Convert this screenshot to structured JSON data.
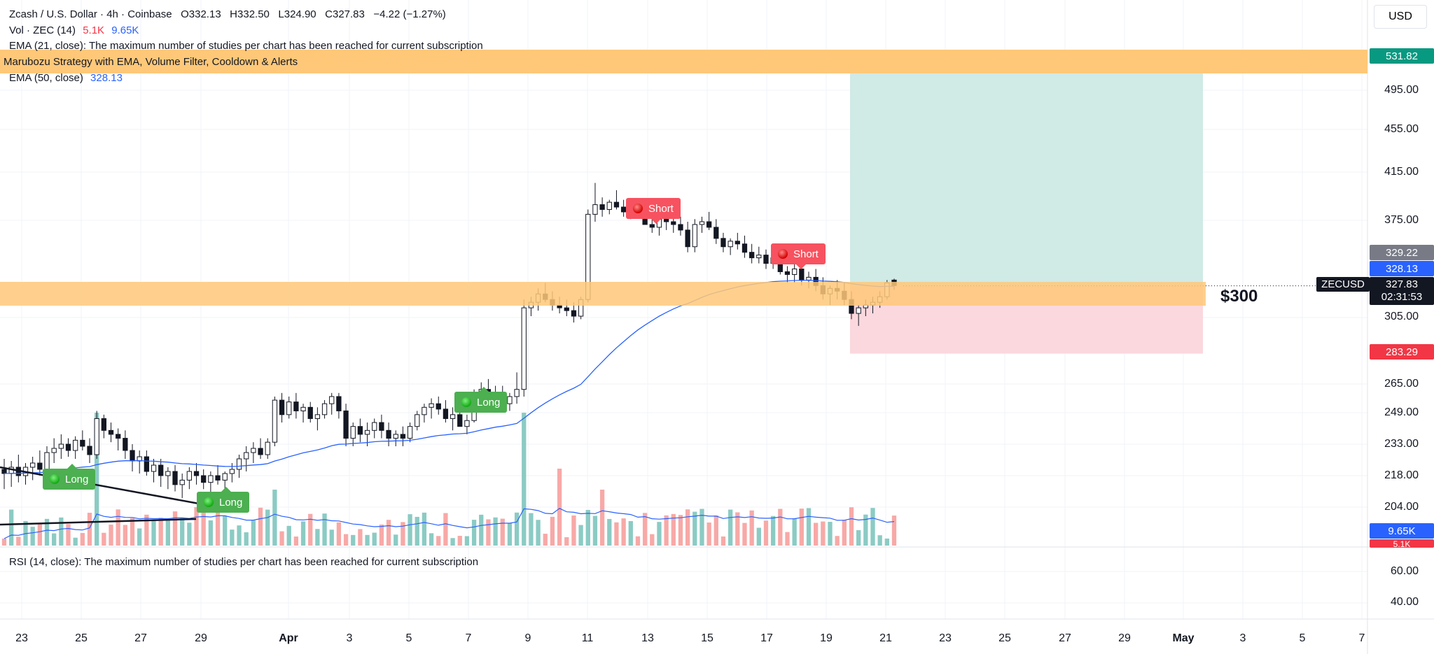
{
  "header": {
    "title": "Zcash / U.S. Dollar · 4h · Coinbase",
    "ohlc": {
      "open": "O332.13",
      "high": "H332.50",
      "low": "L324.90",
      "close": "C327.83",
      "change": "−4.22 (−1.27%)"
    }
  },
  "legend": {
    "vol_label": "Vol · ZEC (14)",
    "vol_value_red": "5.1K",
    "vol_value_blue": "9.65K",
    "ema21_label": "EMA (21, close):",
    "ema21_message": "The maximum number of studies per chart has been reached for current subscription",
    "strategy_label": "Marubozu Strategy with EMA, Volume Filter, Cooldown & Alerts",
    "ema50_label": "EMA (50, close)",
    "ema50_value": "328.13",
    "rsi_label": "RSI (14, close):",
    "rsi_message": "The maximum number of studies per chart has been reached for current subscription"
  },
  "currency_button": "USD",
  "price_axis": {
    "ticks": [
      "495.00",
      "455.00",
      "415.00",
      "375.00",
      "305.00",
      "265.00",
      "249.00",
      "233.00",
      "218.00",
      "204.00"
    ],
    "rsi_ticks": [
      "60.00",
      "40.00"
    ]
  },
  "price_tags": {
    "target": "531.82",
    "last_gray": "329.22",
    "ema50": "328.13",
    "symbol": "ZECUSD",
    "current": "327.83",
    "countdown": "02:31:53",
    "stop": "283.29",
    "vol_blue": "9.65K",
    "vol_red": "5.1K"
  },
  "annotation": "$300",
  "signals": [
    {
      "type": "long",
      "label": "Long"
    },
    {
      "type": "long",
      "label": "Long"
    },
    {
      "type": "long",
      "label": "Long"
    },
    {
      "type": "short",
      "label": "Short"
    },
    {
      "type": "short",
      "label": "Short"
    }
  ],
  "time_axis": [
    "23",
    "25",
    "27",
    "29",
    "Apr",
    "3",
    "5",
    "7",
    "9",
    "11",
    "13",
    "15",
    "17",
    "19",
    "21",
    "23",
    "25",
    "27",
    "29",
    "May",
    "3",
    "5",
    "7"
  ],
  "colors": {
    "up": "#26a69a",
    "down": "#131722",
    "ema": "#2962ff",
    "highlight": "#ffc879",
    "target_zone": "#cde9e5",
    "stop_zone": "#fbd6db",
    "long": "#4caf50",
    "short": "#f7525f"
  },
  "chart_data": {
    "type": "candlestick",
    "symbol": "ZECUSD",
    "interval": "4h",
    "price_range": [
      190,
      540
    ],
    "candles_ohlc": [
      [
        221,
        226,
        212,
        219
      ],
      [
        219,
        225,
        213,
        222
      ],
      [
        222,
        228,
        215,
        218
      ],
      [
        218,
        224,
        214,
        222
      ],
      [
        222,
        227,
        216,
        224
      ],
      [
        224,
        230,
        218,
        221
      ],
      [
        221,
        232,
        220,
        229
      ],
      [
        229,
        236,
        224,
        231
      ],
      [
        231,
        238,
        226,
        233
      ],
      [
        233,
        236,
        227,
        230
      ],
      [
        230,
        237,
        226,
        235
      ],
      [
        235,
        240,
        230,
        232
      ],
      [
        232,
        236,
        224,
        228
      ],
      [
        228,
        250,
        226,
        246
      ],
      [
        246,
        248,
        236,
        240
      ],
      [
        240,
        244,
        234,
        238
      ],
      [
        238,
        241,
        230,
        236
      ],
      [
        236,
        240,
        226,
        230
      ],
      [
        230,
        233,
        220,
        225
      ],
      [
        225,
        230,
        219,
        227
      ],
      [
        227,
        230,
        218,
        220
      ],
      [
        220,
        226,
        215,
        223
      ],
      [
        223,
        226,
        213,
        218
      ],
      [
        218,
        222,
        212,
        220
      ],
      [
        220,
        223,
        211,
        214
      ],
      [
        214,
        219,
        208,
        216
      ],
      [
        216,
        222,
        212,
        220
      ],
      [
        220,
        224,
        214,
        218
      ],
      [
        218,
        221,
        212,
        215
      ],
      [
        215,
        220,
        210,
        218
      ],
      [
        218,
        223,
        214,
        216
      ],
      [
        216,
        220,
        212,
        219
      ],
      [
        219,
        224,
        215,
        221
      ],
      [
        221,
        228,
        217,
        226
      ],
      [
        226,
        232,
        220,
        229
      ],
      [
        229,
        234,
        224,
        231
      ],
      [
        231,
        236,
        226,
        228
      ],
      [
        228,
        236,
        226,
        234
      ],
      [
        234,
        258,
        232,
        256
      ],
      [
        256,
        260,
        244,
        248
      ],
      [
        248,
        258,
        246,
        255
      ],
      [
        255,
        260,
        246,
        250
      ],
      [
        250,
        254,
        244,
        252
      ],
      [
        252,
        255,
        244,
        246
      ],
      [
        246,
        252,
        240,
        248
      ],
      [
        248,
        256,
        246,
        254
      ],
      [
        254,
        260,
        248,
        258
      ],
      [
        258,
        260,
        246,
        250
      ],
      [
        250,
        254,
        232,
        236
      ],
      [
        236,
        244,
        232,
        242
      ],
      [
        242,
        246,
        234,
        238
      ],
      [
        238,
        244,
        232,
        240
      ],
      [
        240,
        246,
        236,
        244
      ],
      [
        244,
        248,
        236,
        240
      ],
      [
        240,
        244,
        232,
        236
      ],
      [
        236,
        240,
        232,
        238
      ],
      [
        238,
        242,
        232,
        236
      ],
      [
        236,
        244,
        234,
        242
      ],
      [
        242,
        250,
        240,
        248
      ],
      [
        248,
        254,
        244,
        252
      ],
      [
        252,
        257,
        246,
        254
      ],
      [
        254,
        258,
        248,
        251
      ],
      [
        251,
        256,
        244,
        246
      ],
      [
        246,
        252,
        240,
        248
      ],
      [
        248,
        254,
        244,
        242
      ],
      [
        242,
        248,
        238,
        245
      ],
      [
        245,
        262,
        244,
        258
      ],
      [
        258,
        266,
        252,
        262
      ],
      [
        262,
        268,
        254,
        258
      ],
      [
        258,
        264,
        252,
        260
      ],
      [
        260,
        264,
        250,
        254
      ],
      [
        254,
        260,
        250,
        258
      ],
      [
        258,
        272,
        254,
        262
      ],
      [
        262,
        318,
        258,
        312
      ],
      [
        312,
        320,
        306,
        316
      ],
      [
        316,
        326,
        310,
        322
      ],
      [
        322,
        330,
        316,
        318
      ],
      [
        318,
        324,
        310,
        314
      ],
      [
        314,
        320,
        308,
        312
      ],
      [
        312,
        318,
        306,
        310
      ],
      [
        310,
        316,
        302,
        306
      ],
      [
        306,
        320,
        304,
        318
      ],
      [
        318,
        384,
        316,
        380
      ],
      [
        380,
        406,
        374,
        388
      ],
      [
        388,
        394,
        378,
        384
      ],
      [
        384,
        392,
        380,
        390
      ],
      [
        390,
        400,
        384,
        386
      ],
      [
        386,
        392,
        378,
        382
      ],
      [
        382,
        388,
        376,
        384
      ],
      [
        384,
        390,
        378,
        380
      ],
      [
        380,
        386,
        374,
        372
      ],
      [
        372,
        378,
        366,
        370
      ],
      [
        370,
        378,
        364,
        376
      ],
      [
        376,
        380,
        368,
        374
      ],
      [
        374,
        380,
        366,
        372
      ],
      [
        372,
        378,
        364,
        368
      ],
      [
        368,
        374,
        352,
        356
      ],
      [
        356,
        376,
        352,
        372
      ],
      [
        372,
        378,
        366,
        374
      ],
      [
        374,
        382,
        368,
        370
      ],
      [
        370,
        376,
        358,
        362
      ],
      [
        362,
        366,
        352,
        356
      ],
      [
        356,
        362,
        350,
        360
      ],
      [
        360,
        366,
        354,
        358
      ],
      [
        358,
        364,
        348,
        352
      ],
      [
        352,
        358,
        344,
        348
      ],
      [
        348,
        356,
        344,
        350
      ],
      [
        350,
        354,
        340,
        344
      ],
      [
        344,
        352,
        340,
        348
      ],
      [
        348,
        350,
        336,
        338
      ],
      [
        338,
        342,
        330,
        336
      ],
      [
        336,
        344,
        330,
        340
      ],
      [
        340,
        346,
        328,
        332
      ],
      [
        332,
        338,
        326,
        334
      ],
      [
        334,
        340,
        324,
        328
      ],
      [
        328,
        334,
        318,
        322
      ],
      [
        322,
        328,
        314,
        326
      ],
      [
        326,
        332,
        318,
        324
      ],
      [
        324,
        330,
        314,
        318
      ],
      [
        318,
        324,
        304,
        308
      ],
      [
        308,
        314,
        300,
        312
      ],
      [
        312,
        318,
        306,
        314
      ],
      [
        314,
        320,
        308,
        316
      ],
      [
        316,
        324,
        312,
        320
      ],
      [
        320,
        332,
        318,
        330
      ],
      [
        332,
        333,
        325,
        328
      ]
    ],
    "ema50_end": 328.13,
    "long_position": {
      "entry": 327.83,
      "target": 531.82,
      "stop": 283.29
    },
    "highlight_zones": [
      {
        "from": 516,
        "to": 534
      },
      {
        "from": 312,
        "to": 330
      }
    ],
    "volume_last": {
      "value": "5.1K",
      "average": "9.65K"
    }
  }
}
